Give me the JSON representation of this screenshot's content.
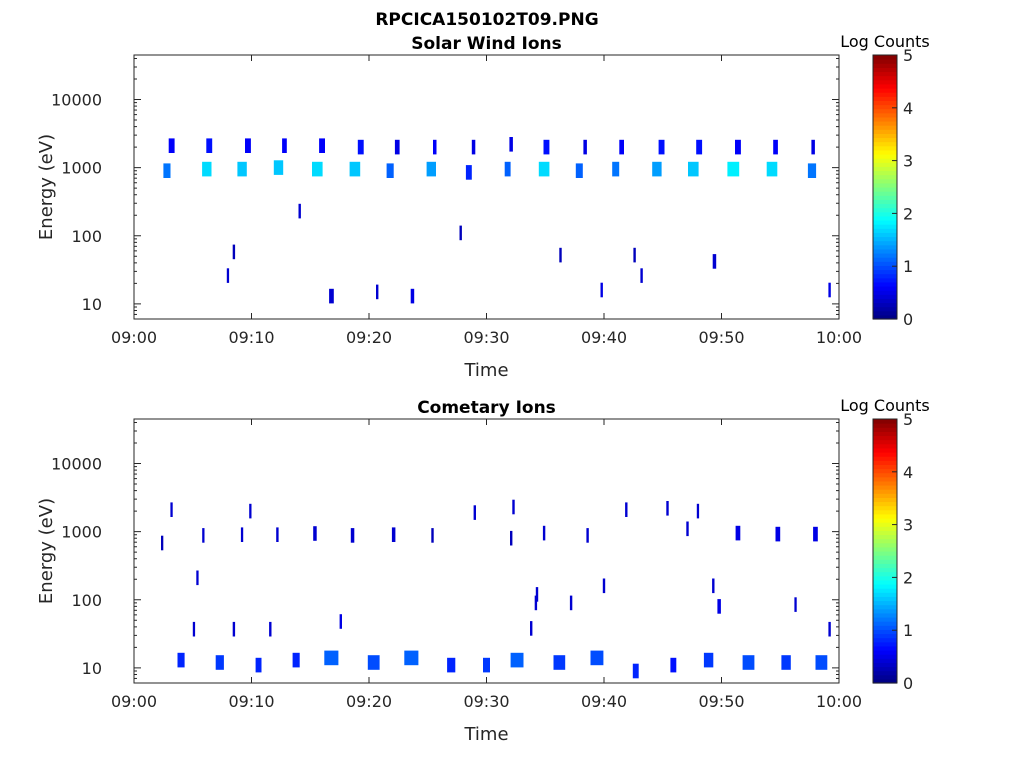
{
  "figure_title": "RPCICA150102T09.PNG",
  "colormap": [
    "#00007f",
    "#0000ff",
    "#007fff",
    "#00ffff",
    "#7fff7f",
    "#ffff00",
    "#ff7f00",
    "#ff0000",
    "#7f0000"
  ],
  "chart_data": [
    {
      "type": "heatmap",
      "title": "Solar Wind Ions",
      "xlabel": "Time",
      "ylabel": "Energy (eV)",
      "x_ticks": [
        "09:00",
        "09:10",
        "09:20",
        "09:30",
        "09:40",
        "09:50",
        "10:00"
      ],
      "xlim_minutes": [
        0,
        60
      ],
      "y_ticks": [
        "10",
        "100",
        "1000",
        "10000"
      ],
      "y_tick_values": [
        10,
        100,
        1000,
        10000
      ],
      "ylim": [
        6,
        45000
      ],
      "y_scale": "log",
      "colorbar": {
        "label": "Log Counts",
        "ticks": [
          "0",
          "1",
          "2",
          "3",
          "4",
          "5"
        ],
        "range": [
          0,
          5
        ]
      },
      "cells": [
        {
          "t": 2.8,
          "e": 900,
          "dt": 0.6,
          "lv": 1.2
        },
        {
          "t": 3.2,
          "e": 2100,
          "dt": 0.5,
          "lv": 0.6
        },
        {
          "t": 6.2,
          "e": 950,
          "dt": 0.8,
          "lv": 1.7
        },
        {
          "t": 6.4,
          "e": 2100,
          "dt": 0.5,
          "lv": 0.7
        },
        {
          "t": 9.2,
          "e": 950,
          "dt": 0.8,
          "lv": 1.6
        },
        {
          "t": 9.7,
          "e": 2100,
          "dt": 0.5,
          "lv": 0.6
        },
        {
          "t": 12.3,
          "e": 1000,
          "dt": 0.8,
          "lv": 1.6
        },
        {
          "t": 12.8,
          "e": 2100,
          "dt": 0.4,
          "lv": 0.6
        },
        {
          "t": 15.6,
          "e": 950,
          "dt": 0.9,
          "lv": 1.7
        },
        {
          "t": 16.0,
          "e": 2100,
          "dt": 0.5,
          "lv": 0.6
        },
        {
          "t": 18.8,
          "e": 950,
          "dt": 0.9,
          "lv": 1.6
        },
        {
          "t": 19.3,
          "e": 2000,
          "dt": 0.5,
          "lv": 0.7
        },
        {
          "t": 21.8,
          "e": 900,
          "dt": 0.6,
          "lv": 1.1
        },
        {
          "t": 22.4,
          "e": 2000,
          "dt": 0.4,
          "lv": 0.5
        },
        {
          "t": 25.3,
          "e": 950,
          "dt": 0.8,
          "lv": 1.4
        },
        {
          "t": 25.6,
          "e": 2000,
          "dt": 0.3,
          "lv": 0.6
        },
        {
          "t": 28.5,
          "e": 850,
          "dt": 0.5,
          "lv": 0.8
        },
        {
          "t": 28.9,
          "e": 2000,
          "dt": 0.3,
          "lv": 0.5
        },
        {
          "t": 31.8,
          "e": 950,
          "dt": 0.5,
          "lv": 1.1
        },
        {
          "t": 32.1,
          "e": 2200,
          "dt": 0.3,
          "lv": 0.5
        },
        {
          "t": 34.9,
          "e": 950,
          "dt": 0.9,
          "lv": 1.7
        },
        {
          "t": 35.1,
          "e": 2000,
          "dt": 0.5,
          "lv": 0.7
        },
        {
          "t": 37.9,
          "e": 900,
          "dt": 0.6,
          "lv": 1.1
        },
        {
          "t": 38.4,
          "e": 2000,
          "dt": 0.3,
          "lv": 0.5
        },
        {
          "t": 41.0,
          "e": 950,
          "dt": 0.6,
          "lv": 1.2
        },
        {
          "t": 41.5,
          "e": 2000,
          "dt": 0.4,
          "lv": 0.6
        },
        {
          "t": 44.5,
          "e": 950,
          "dt": 0.8,
          "lv": 1.4
        },
        {
          "t": 44.9,
          "e": 2000,
          "dt": 0.5,
          "lv": 0.7
        },
        {
          "t": 47.6,
          "e": 950,
          "dt": 0.9,
          "lv": 1.6
        },
        {
          "t": 48.1,
          "e": 2000,
          "dt": 0.5,
          "lv": 0.7
        },
        {
          "t": 51.0,
          "e": 950,
          "dt": 1.0,
          "lv": 1.8
        },
        {
          "t": 51.4,
          "e": 2000,
          "dt": 0.5,
          "lv": 0.6
        },
        {
          "t": 54.3,
          "e": 950,
          "dt": 0.9,
          "lv": 1.7
        },
        {
          "t": 54.6,
          "e": 2000,
          "dt": 0.4,
          "lv": 0.6
        },
        {
          "t": 57.7,
          "e": 900,
          "dt": 0.7,
          "lv": 1.2
        },
        {
          "t": 57.8,
          "e": 2000,
          "dt": 0.3,
          "lv": 0.5
        },
        {
          "t": 14.1,
          "e": 230,
          "dt": 0.2,
          "lv": 0.4
        },
        {
          "t": 8.5,
          "e": 58,
          "dt": 0.2,
          "lv": 0.3
        },
        {
          "t": 27.8,
          "e": 110,
          "dt": 0.2,
          "lv": 0.3
        },
        {
          "t": 36.3,
          "e": 52,
          "dt": 0.2,
          "lv": 0.3
        },
        {
          "t": 42.6,
          "e": 52,
          "dt": 0.2,
          "lv": 0.3
        },
        {
          "t": 49.4,
          "e": 42,
          "dt": 0.3,
          "lv": 0.4
        },
        {
          "t": 8.0,
          "e": 26,
          "dt": 0.2,
          "lv": 0.4
        },
        {
          "t": 43.2,
          "e": 26,
          "dt": 0.2,
          "lv": 0.4
        },
        {
          "t": 16.8,
          "e": 13,
          "dt": 0.4,
          "lv": 0.4
        },
        {
          "t": 20.7,
          "e": 15,
          "dt": 0.2,
          "lv": 0.4
        },
        {
          "t": 23.7,
          "e": 13,
          "dt": 0.3,
          "lv": 0.5
        },
        {
          "t": 39.8,
          "e": 16,
          "dt": 0.2,
          "lv": 0.5
        },
        {
          "t": 59.2,
          "e": 16,
          "dt": 0.2,
          "lv": 0.5
        }
      ]
    },
    {
      "type": "heatmap",
      "title": "Cometary Ions",
      "xlabel": "Time",
      "ylabel": "Energy (eV)",
      "x_ticks": [
        "09:00",
        "09:10",
        "09:20",
        "09:30",
        "09:40",
        "09:50",
        "10:00"
      ],
      "xlim_minutes": [
        0,
        60
      ],
      "y_ticks": [
        "10",
        "100",
        "1000",
        "10000"
      ],
      "y_tick_values": [
        10,
        100,
        1000,
        10000
      ],
      "ylim": [
        6,
        45000
      ],
      "y_scale": "log",
      "colorbar": {
        "label": "Log Counts",
        "ticks": [
          "0",
          "1",
          "2",
          "3",
          "4",
          "5"
        ],
        "range": [
          0,
          5
        ]
      },
      "cells": [
        {
          "t": 3.2,
          "e": 2100,
          "dt": 0.2,
          "lv": 0.4
        },
        {
          "t": 9.9,
          "e": 2000,
          "dt": 0.2,
          "lv": 0.4
        },
        {
          "t": 29.0,
          "e": 1900,
          "dt": 0.2,
          "lv": 0.4
        },
        {
          "t": 32.3,
          "e": 2300,
          "dt": 0.2,
          "lv": 0.4
        },
        {
          "t": 41.9,
          "e": 2100,
          "dt": 0.2,
          "lv": 0.4
        },
        {
          "t": 45.4,
          "e": 2200,
          "dt": 0.2,
          "lv": 0.4
        },
        {
          "t": 48.0,
          "e": 2000,
          "dt": 0.2,
          "lv": 0.4
        },
        {
          "t": 2.4,
          "e": 680,
          "dt": 0.2,
          "lv": 0.3
        },
        {
          "t": 5.9,
          "e": 880,
          "dt": 0.2,
          "lv": 0.4
        },
        {
          "t": 9.2,
          "e": 900,
          "dt": 0.2,
          "lv": 0.4
        },
        {
          "t": 12.2,
          "e": 900,
          "dt": 0.2,
          "lv": 0.4
        },
        {
          "t": 15.4,
          "e": 940,
          "dt": 0.3,
          "lv": 0.4
        },
        {
          "t": 18.6,
          "e": 880,
          "dt": 0.3,
          "lv": 0.4
        },
        {
          "t": 22.1,
          "e": 900,
          "dt": 0.3,
          "lv": 0.4
        },
        {
          "t": 25.4,
          "e": 880,
          "dt": 0.2,
          "lv": 0.3
        },
        {
          "t": 32.1,
          "e": 800,
          "dt": 0.2,
          "lv": 0.3
        },
        {
          "t": 34.9,
          "e": 950,
          "dt": 0.2,
          "lv": 0.4
        },
        {
          "t": 38.6,
          "e": 880,
          "dt": 0.2,
          "lv": 0.4
        },
        {
          "t": 47.1,
          "e": 1100,
          "dt": 0.2,
          "lv": 0.4
        },
        {
          "t": 51.4,
          "e": 950,
          "dt": 0.4,
          "lv": 0.5
        },
        {
          "t": 54.8,
          "e": 920,
          "dt": 0.4,
          "lv": 0.5
        },
        {
          "t": 58.0,
          "e": 920,
          "dt": 0.4,
          "lv": 0.5
        },
        {
          "t": 5.4,
          "e": 210,
          "dt": 0.2,
          "lv": 0.4
        },
        {
          "t": 34.3,
          "e": 120,
          "dt": 0.2,
          "lv": 0.4
        },
        {
          "t": 34.2,
          "e": 90,
          "dt": 0.2,
          "lv": 0.4
        },
        {
          "t": 37.2,
          "e": 90,
          "dt": 0.2,
          "lv": 0.4
        },
        {
          "t": 40.0,
          "e": 160,
          "dt": 0.2,
          "lv": 0.4
        },
        {
          "t": 49.3,
          "e": 160,
          "dt": 0.2,
          "lv": 0.4
        },
        {
          "t": 49.8,
          "e": 80,
          "dt": 0.3,
          "lv": 0.5
        },
        {
          "t": 56.3,
          "e": 85,
          "dt": 0.2,
          "lv": 0.4
        },
        {
          "t": 17.6,
          "e": 48,
          "dt": 0.2,
          "lv": 0.5
        },
        {
          "t": 33.8,
          "e": 38,
          "dt": 0.2,
          "lv": 0.4
        },
        {
          "t": 5.1,
          "e": 37,
          "dt": 0.2,
          "lv": 0.4
        },
        {
          "t": 8.5,
          "e": 37,
          "dt": 0.2,
          "lv": 0.4
        },
        {
          "t": 11.6,
          "e": 37,
          "dt": 0.2,
          "lv": 0.4
        },
        {
          "t": 59.2,
          "e": 37,
          "dt": 0.2,
          "lv": 0.4
        },
        {
          "t": 4.0,
          "e": 13,
          "dt": 0.6,
          "lv": 0.8
        },
        {
          "t": 7.3,
          "e": 12,
          "dt": 0.7,
          "lv": 0.9
        },
        {
          "t": 10.6,
          "e": 11,
          "dt": 0.5,
          "lv": 0.8
        },
        {
          "t": 13.8,
          "e": 13,
          "dt": 0.6,
          "lv": 0.8
        },
        {
          "t": 16.8,
          "e": 14,
          "dt": 1.2,
          "lv": 1.1
        },
        {
          "t": 20.4,
          "e": 12,
          "dt": 1.0,
          "lv": 1.0
        },
        {
          "t": 23.6,
          "e": 14,
          "dt": 1.2,
          "lv": 1.1
        },
        {
          "t": 27.0,
          "e": 11,
          "dt": 0.7,
          "lv": 0.8
        },
        {
          "t": 30.0,
          "e": 11,
          "dt": 0.6,
          "lv": 0.9
        },
        {
          "t": 32.6,
          "e": 13,
          "dt": 1.1,
          "lv": 1.1
        },
        {
          "t": 36.2,
          "e": 12,
          "dt": 1.0,
          "lv": 0.9
        },
        {
          "t": 39.4,
          "e": 14,
          "dt": 1.1,
          "lv": 1.0
        },
        {
          "t": 42.7,
          "e": 9,
          "dt": 0.5,
          "lv": 0.8
        },
        {
          "t": 45.9,
          "e": 11,
          "dt": 0.5,
          "lv": 0.7
        },
        {
          "t": 48.9,
          "e": 13,
          "dt": 0.8,
          "lv": 0.9
        },
        {
          "t": 52.3,
          "e": 12,
          "dt": 1.0,
          "lv": 1.0
        },
        {
          "t": 55.5,
          "e": 12,
          "dt": 0.8,
          "lv": 0.9
        },
        {
          "t": 58.5,
          "e": 12,
          "dt": 1.0,
          "lv": 1.0
        }
      ]
    }
  ]
}
